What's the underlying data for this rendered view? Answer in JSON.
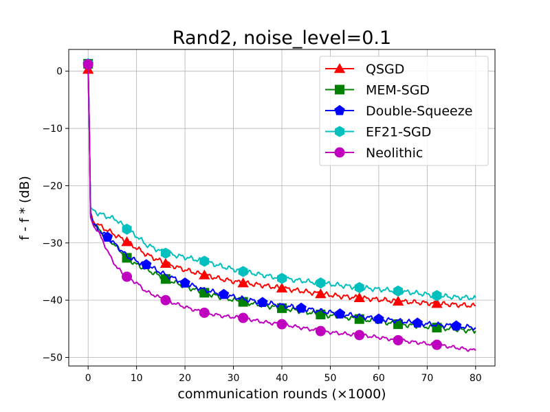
{
  "chart_data": {
    "type": "line",
    "title": "Rand2, noise_level=0.1",
    "xlabel": "communication rounds (×1000)",
    "ylabel": "f - f * (dB)",
    "xlim": [
      -4,
      84
    ],
    "ylim": [
      -51.5,
      3.8
    ],
    "xticks": [
      0,
      10,
      20,
      30,
      40,
      50,
      60,
      70,
      80
    ],
    "xtick_labels": [
      "0",
      "10",
      "20",
      "30",
      "40",
      "50",
      "60",
      "70",
      "80"
    ],
    "yticks": [
      0,
      -10,
      -20,
      -30,
      -40,
      -50
    ],
    "ytick_labels": [
      "0",
      "−10",
      "−20",
      "−30",
      "−40",
      "−50"
    ],
    "grid": true,
    "legend_position": "top-right",
    "series": [
      {
        "name": "QSGD",
        "color": "#ff0000",
        "marker": "triangle",
        "x": [
          0,
          0.25,
          0.5,
          1,
          2,
          4,
          6,
          8,
          10,
          12,
          16,
          20,
          24,
          28,
          32,
          36,
          40,
          44,
          48,
          52,
          56,
          60,
          64,
          68,
          72,
          76,
          80
        ],
        "y": [
          0.3,
          -10,
          -24.5,
          -26.1,
          -26.8,
          -27.8,
          -28.8,
          -29.8,
          -30.9,
          -32.0,
          -33.6,
          -34.7,
          -35.6,
          -36.4,
          -37.0,
          -37.4,
          -37.9,
          -38.4,
          -38.9,
          -39.3,
          -39.6,
          -39.9,
          -40.2,
          -40.4,
          -40.6,
          -40.8,
          -41.0
        ],
        "markers_x": [
          0,
          8,
          16,
          24,
          32,
          40,
          48,
          56,
          64,
          72
        ],
        "markers_y": [
          0.3,
          -29.8,
          -33.6,
          -35.6,
          -37.0,
          -37.9,
          -38.9,
          -39.6,
          -40.2,
          -40.6
        ]
      },
      {
        "name": "MEM-SGD",
        "color": "#008000",
        "marker": "square",
        "x": [
          0,
          0.25,
          0.5,
          1,
          2,
          4,
          6,
          8,
          10,
          12,
          16,
          20,
          24,
          28,
          32,
          36,
          40,
          44,
          48,
          52,
          56,
          60,
          64,
          68,
          72,
          76,
          80
        ],
        "y": [
          1.3,
          -10,
          -24.8,
          -26.5,
          -27.5,
          -29.0,
          -30.8,
          -32.6,
          -33.8,
          -34.6,
          -36.3,
          -37.6,
          -38.7,
          -39.6,
          -40.3,
          -40.9,
          -41.4,
          -41.9,
          -42.5,
          -42.9,
          -43.3,
          -43.7,
          -44.2,
          -44.5,
          -44.8,
          -45.1,
          -45.4
        ],
        "markers_x": [
          0,
          8,
          16,
          24,
          32,
          40,
          48,
          56,
          64,
          72
        ],
        "markers_y": [
          1.3,
          -32.6,
          -36.3,
          -38.7,
          -40.3,
          -41.4,
          -42.5,
          -43.3,
          -44.2,
          -44.8
        ]
      },
      {
        "name": "Double-Squeeze",
        "color": "#0000ff",
        "marker": "pentagon",
        "x": [
          0,
          0.25,
          0.5,
          1,
          2,
          4,
          6,
          8,
          10,
          12,
          16,
          20,
          24,
          28,
          32,
          36,
          40,
          44,
          48,
          52,
          56,
          60,
          64,
          68,
          72,
          76,
          80
        ],
        "y": [
          1.2,
          -10,
          -24.9,
          -26.6,
          -27.6,
          -29.0,
          -30.6,
          -32.3,
          -33.2,
          -33.8,
          -35.6,
          -37.0,
          -38.2,
          -39.0,
          -39.8,
          -40.4,
          -40.9,
          -41.4,
          -41.9,
          -42.4,
          -42.8,
          -43.3,
          -43.6,
          -44.0,
          -44.3,
          -44.5,
          -44.8
        ],
        "markers_x": [
          0,
          4,
          12,
          20,
          28,
          36,
          44,
          52,
          60,
          68,
          76
        ],
        "markers_y": [
          1.2,
          -29.0,
          -33.8,
          -37.0,
          -39.0,
          -40.4,
          -41.4,
          -42.4,
          -43.3,
          -44.0,
          -44.5
        ]
      },
      {
        "name": "EF21-SGD",
        "color": "#00bfbf",
        "marker": "hexagon",
        "x": [
          0,
          0.25,
          0.5,
          1,
          2,
          4,
          6,
          8,
          10,
          12,
          16,
          20,
          24,
          28,
          32,
          36,
          40,
          44,
          48,
          52,
          56,
          60,
          64,
          68,
          72,
          76,
          80
        ],
        "y": [
          1.3,
          -10,
          -23.8,
          -24.2,
          -24.8,
          -25.4,
          -26.0,
          -27.6,
          -28.8,
          -30.3,
          -31.8,
          -32.5,
          -33.2,
          -34.2,
          -35.0,
          -35.6,
          -36.2,
          -36.6,
          -37.0,
          -37.4,
          -37.8,
          -38.1,
          -38.4,
          -38.8,
          -39.2,
          -39.5,
          -39.6
        ],
        "markers_x": [
          0,
          8,
          16,
          24,
          32,
          40,
          48,
          56,
          64,
          72
        ],
        "markers_y": [
          1.3,
          -27.6,
          -31.8,
          -33.2,
          -35.0,
          -36.2,
          -37.0,
          -37.8,
          -38.4,
          -39.2
        ]
      },
      {
        "name": "Neolithic",
        "color": "#bf00bf",
        "marker": "circle",
        "x": [
          0,
          0.25,
          0.5,
          1,
          2,
          3,
          4,
          6,
          8,
          10,
          12,
          16,
          20,
          24,
          28,
          32,
          36,
          40,
          44,
          48,
          52,
          56,
          60,
          64,
          68,
          72,
          76,
          80
        ],
        "y": [
          1.2,
          -10,
          -25.5,
          -26.8,
          -28.0,
          -29.5,
          -31.5,
          -34.4,
          -35.9,
          -37.0,
          -38.5,
          -40.0,
          -41.2,
          -42.2,
          -42.8,
          -43.1,
          -43.8,
          -44.2,
          -44.8,
          -45.4,
          -45.8,
          -46.1,
          -46.5,
          -47.0,
          -47.4,
          -47.8,
          -48.3,
          -48.8
        ],
        "markers_x": [
          0,
          8,
          16,
          24,
          32,
          40,
          48,
          56,
          64,
          72
        ],
        "markers_y": [
          1.2,
          -35.9,
          -40.0,
          -42.2,
          -43.1,
          -44.2,
          -45.4,
          -46.1,
          -47.0,
          -47.8
        ]
      }
    ]
  }
}
